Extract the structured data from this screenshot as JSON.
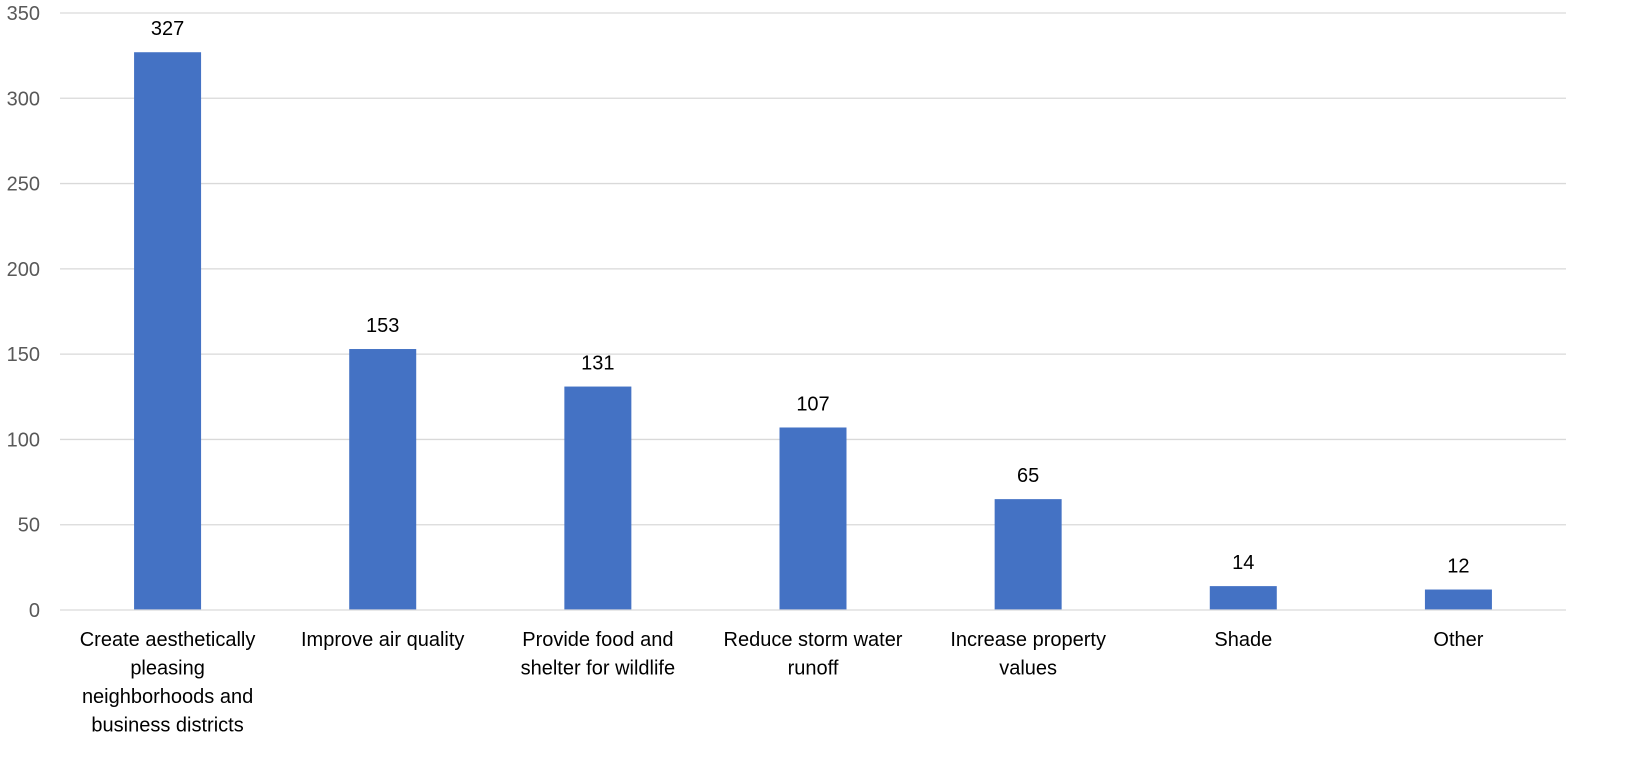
{
  "chart_data": {
    "type": "bar",
    "title": "",
    "xlabel": "",
    "ylabel": "",
    "categories": [
      [
        "Create aesthetically",
        "pleasing",
        "neighborhoods and",
        "business districts"
      ],
      [
        "Improve air quality"
      ],
      [
        "Provide food and",
        "shelter for wildlife"
      ],
      [
        "Reduce storm water",
        "runoff"
      ],
      [
        "Increase property",
        "values"
      ],
      [
        "Shade"
      ],
      [
        "Other"
      ]
    ],
    "values": [
      327,
      153,
      131,
      107,
      65,
      14,
      12
    ],
    "ylim": [
      0,
      350
    ],
    "yticks": [
      0,
      50,
      100,
      150,
      200,
      250,
      300,
      350
    ],
    "grid": true,
    "legend": "none",
    "bar_color": "#4472c4",
    "data_labels": true
  }
}
